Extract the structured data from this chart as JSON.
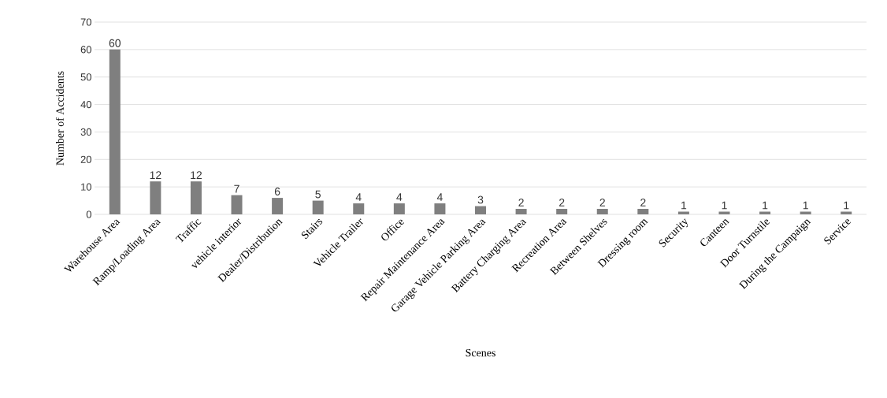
{
  "chart_data": {
    "type": "bar",
    "xlabel": "Scenes",
    "ylabel": "Number of Accidents",
    "categories": [
      "Warehouse Area",
      "Ramp/Loading Area",
      "Traffic",
      "vehicle interior",
      "Dealer/Distribution",
      "Stairs",
      "Vehicle Trailer",
      "Office",
      "Repair Maintenance Area",
      "Garage Vehicle Parking Area",
      "Battery Charging Area",
      "Recreation Area",
      "Between Shelves",
      "Dressing room",
      "Security",
      "Canteen",
      "Door Turnstile",
      "During the Campaign",
      "Service"
    ],
    "values": [
      60,
      12,
      12,
      7,
      6,
      5,
      4,
      4,
      4,
      3,
      2,
      2,
      2,
      2,
      1,
      1,
      1,
      1,
      1
    ],
    "color": "#7f7f7f",
    "ylim": [
      0,
      70
    ],
    "yticks": [
      0,
      10,
      20,
      30,
      40,
      50,
      60,
      70
    ],
    "grid": "y",
    "data_labels": true
  }
}
